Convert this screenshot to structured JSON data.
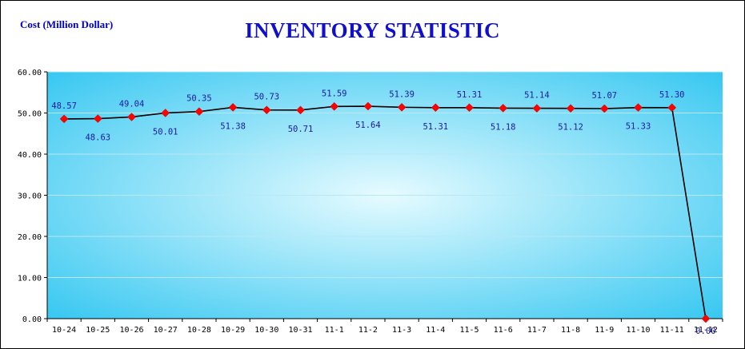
{
  "chart_data": {
    "type": "line",
    "title": "INVENTORY STATISTIC",
    "ylabel": "Cost (Million Dollar)",
    "xlabel": "",
    "ylim": [
      0,
      60
    ],
    "yticks": [
      "0.00",
      "10.00",
      "20.00",
      "30.00",
      "40.00",
      "50.00",
      "60.00"
    ],
    "grid": true,
    "categories": [
      "10-24",
      "10-25",
      "10-26",
      "10-27",
      "10-28",
      "10-29",
      "10-30",
      "10-31",
      "11-1",
      "11-2",
      "11-3",
      "11-4",
      "11-5",
      "11-6",
      "11-7",
      "11-8",
      "11-9",
      "11-10",
      "11-11",
      "11-12"
    ],
    "series": [
      {
        "values": [
          48.57,
          48.63,
          49.04,
          50.01,
          50.35,
          51.38,
          50.73,
          50.71,
          51.59,
          51.64,
          51.39,
          51.31,
          51.31,
          51.18,
          51.14,
          51.12,
          51.07,
          51.33,
          51.3,
          0.0
        ],
        "labels": [
          "48.57",
          "48.63",
          "49.04",
          "50.01",
          "50.35",
          "51.38",
          "50.73",
          "50.71",
          "51.59",
          "51.64",
          "51.39",
          "51.31",
          "51.31",
          "51.18",
          "51.14",
          "51.12",
          "51.07",
          "51.33",
          "51.30",
          "0.00"
        ]
      }
    ],
    "colors": {
      "line": "#000000",
      "marker": "#ff0000",
      "label": "#1a1aa0",
      "title": "#1010cc",
      "plot_edge": "#2cc4f0",
      "plot_center": "#e6fbff"
    }
  }
}
